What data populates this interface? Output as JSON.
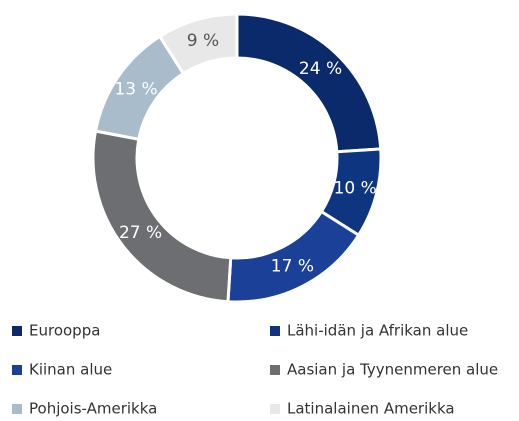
{
  "chart_data": {
    "type": "donut",
    "categories": [
      "Eurooppa",
      "Lähi-idän ja Afrikan alue",
      "Kiinan alue",
      "Aasian ja Tyynenmeren alue",
      "Pohjois-Amerikka",
      "Latinalainen Amerikka"
    ],
    "values": [
      24,
      10,
      17,
      27,
      13,
      9
    ],
    "value_labels": [
      "24 %",
      "10 %",
      "17 %",
      "27 %",
      "13 %",
      "9 %"
    ],
    "colors": [
      "#0b2a6b",
      "#0d3580",
      "#1a4097",
      "#6d6e71",
      "#a9bccb",
      "#e8e8e8"
    ],
    "legend": "bottom"
  }
}
